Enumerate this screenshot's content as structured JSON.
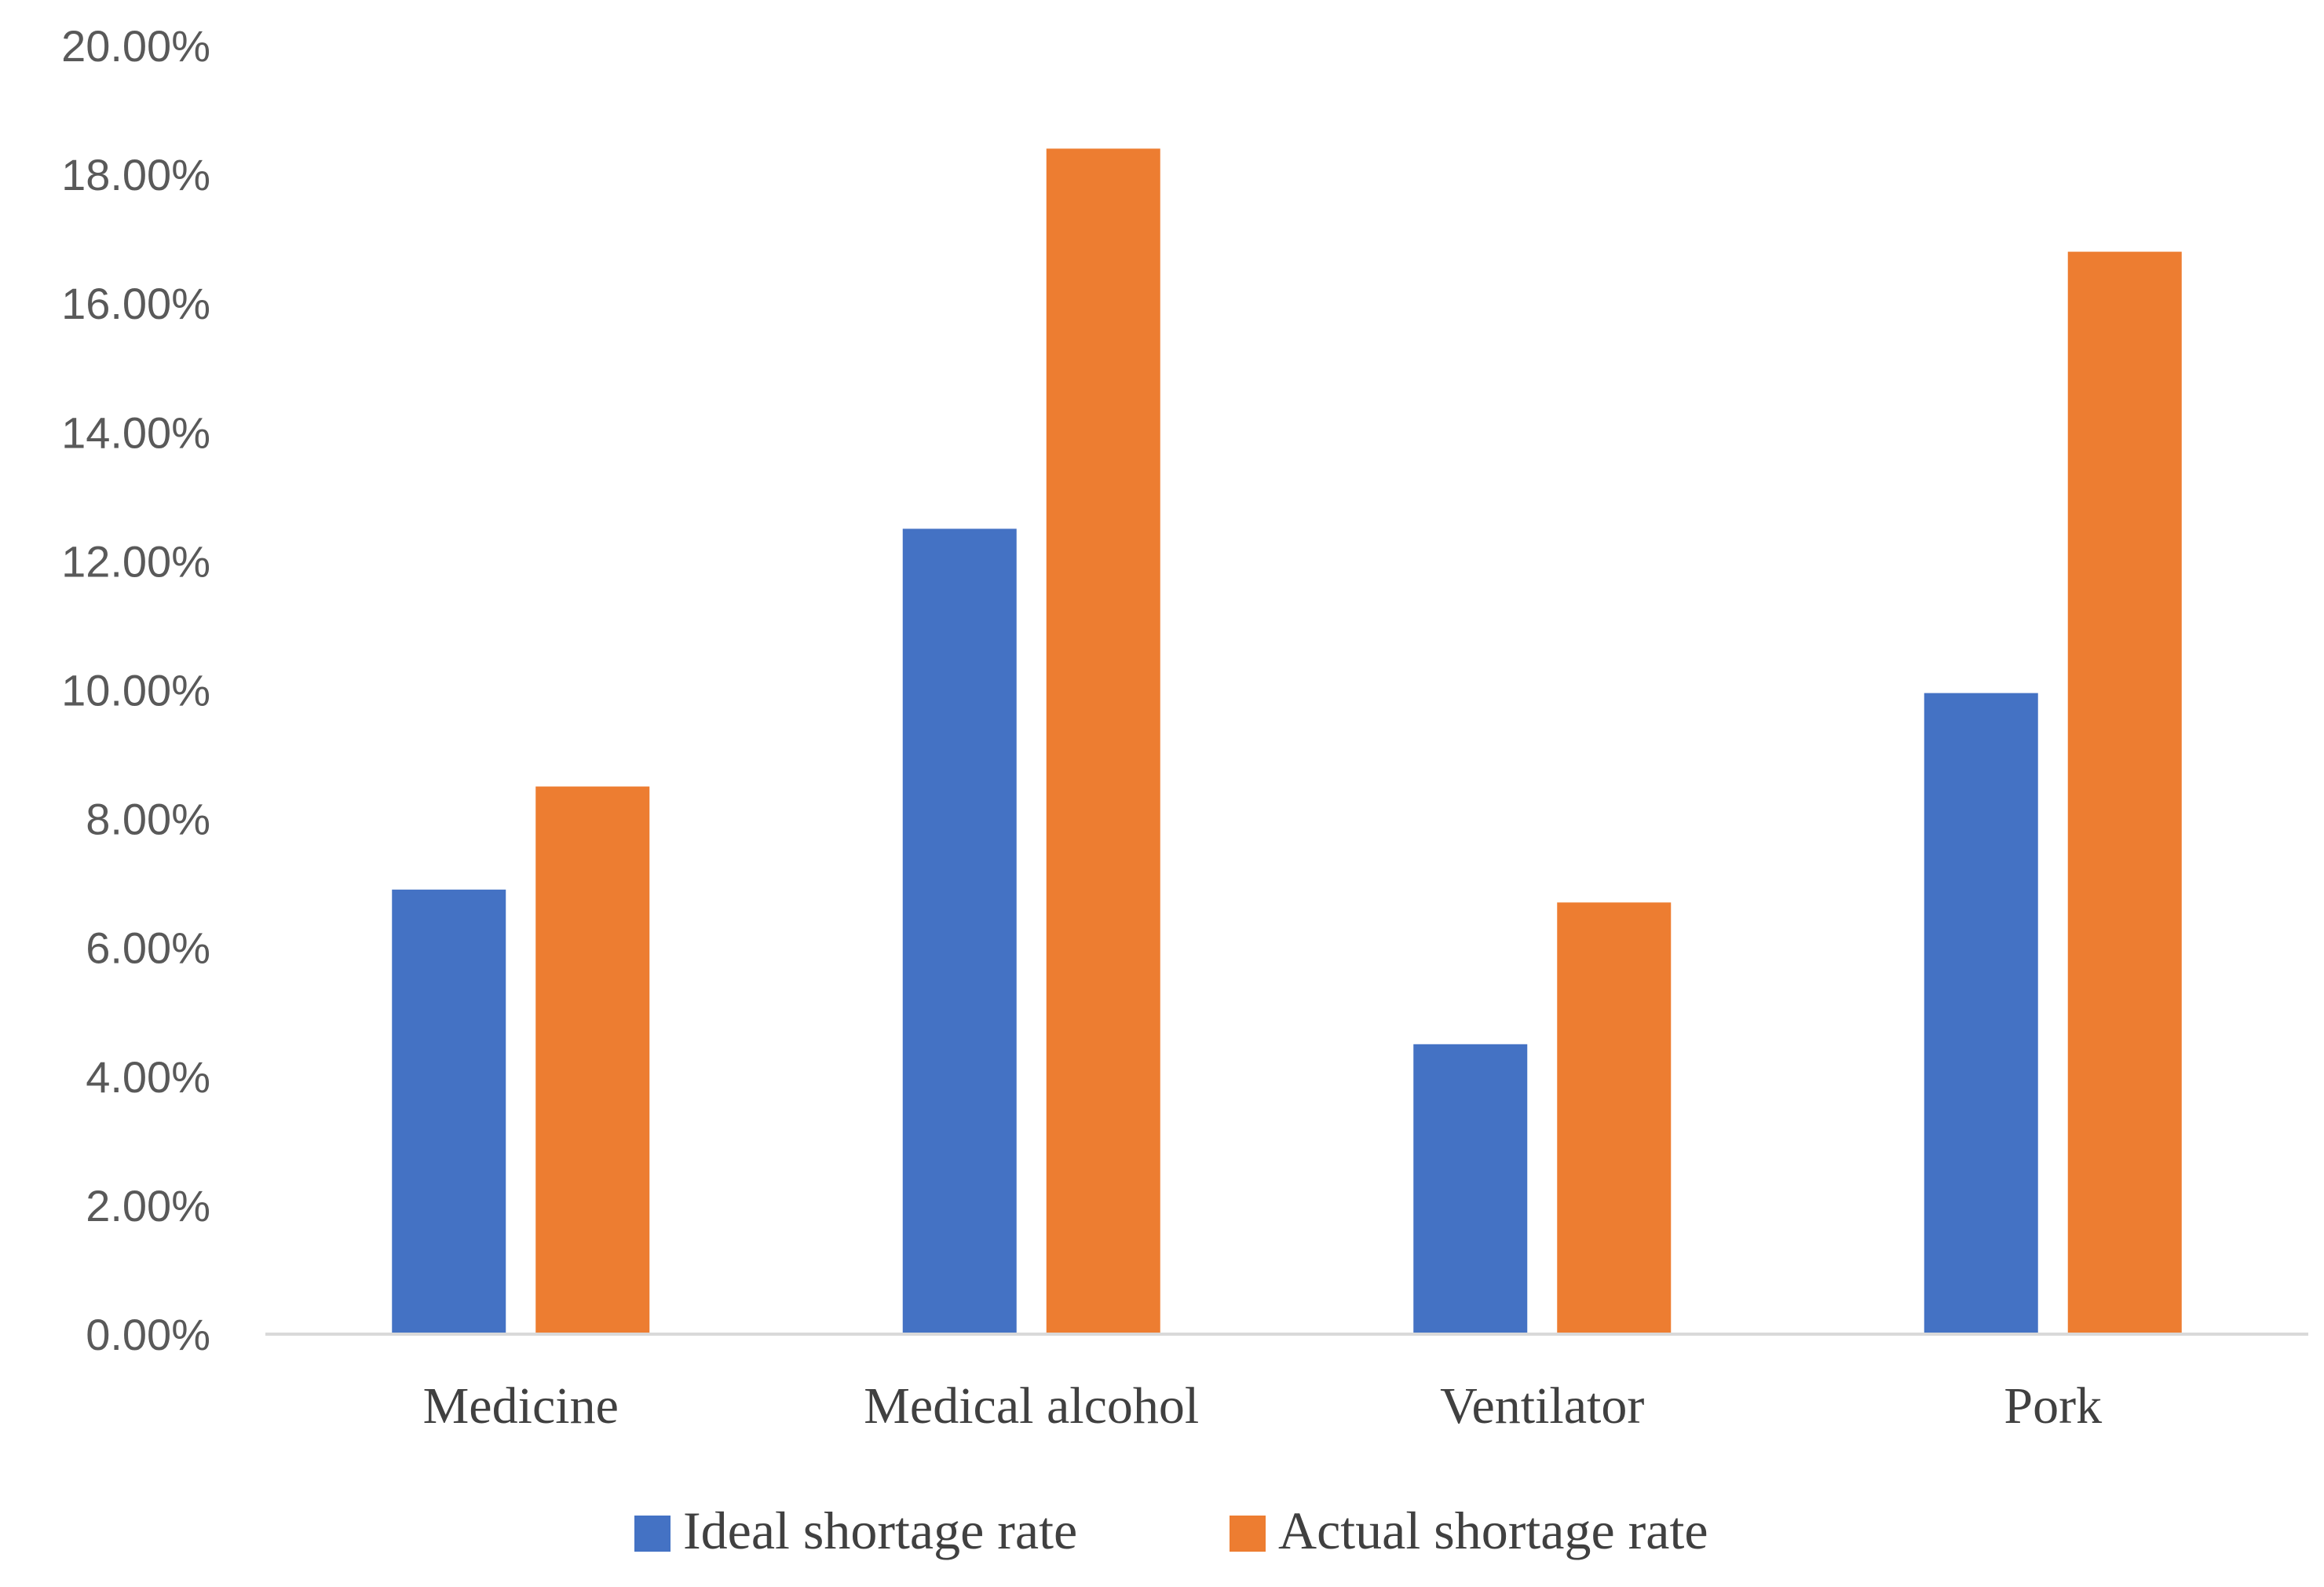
{
  "chart_data": {
    "type": "bar",
    "title": "",
    "xlabel": "",
    "ylabel": "",
    "categories": [
      "Medicine",
      "Medical alcohol",
      "Ventilator",
      "Pork"
    ],
    "series": [
      {
        "name": "Ideal shortage rate",
        "color": "#4472C4",
        "values": [
          6.9,
          12.5,
          4.5,
          9.95
        ]
      },
      {
        "name": "Actual shortage rate",
        "color": "#ED7D31",
        "values": [
          8.5,
          18.4,
          6.7,
          16.8
        ]
      }
    ],
    "ylim": [
      0,
      20
    ],
    "yticks": [
      "0.00%",
      "2.00%",
      "4.00%",
      "6.00%",
      "8.00%",
      "10.00%",
      "12.00%",
      "14.00%",
      "16.00%",
      "18.00%",
      "20.00%"
    ],
    "grid": false,
    "legend_position": "bottom"
  }
}
